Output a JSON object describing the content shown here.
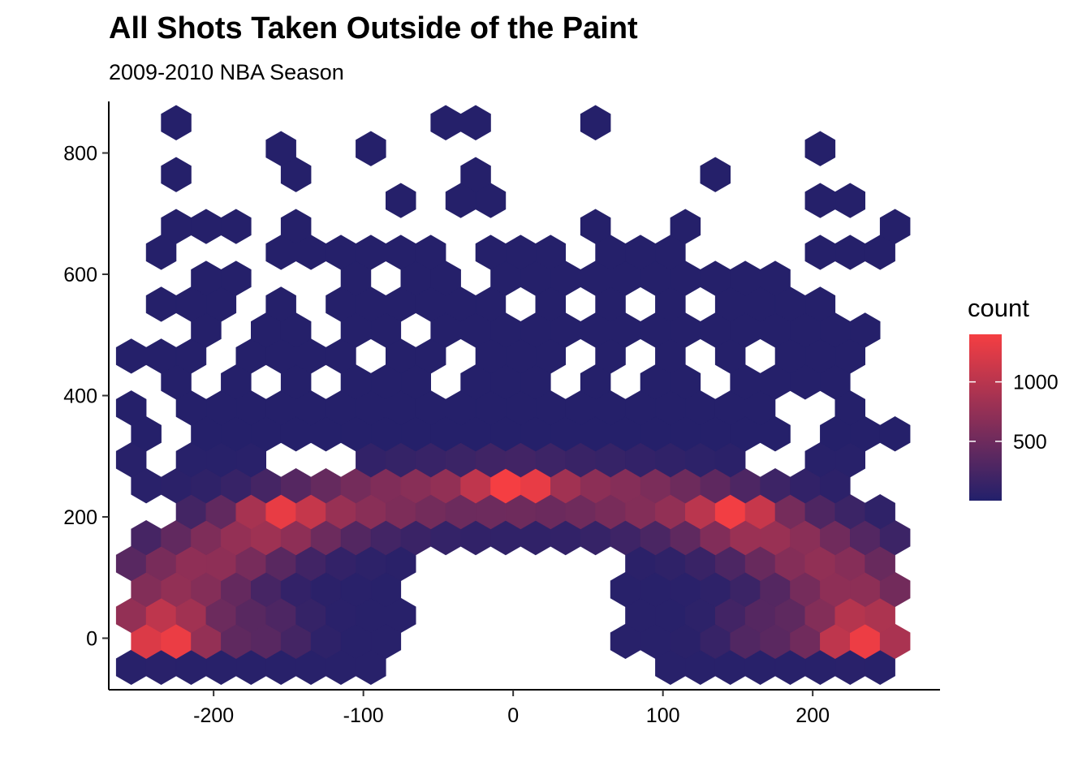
{
  "chart_data": {
    "type": "heatmap",
    "subtype": "hexbin",
    "title": "All Shots Taken Outside of the Paint",
    "subtitle": "2009-2010 NBA Season",
    "xlabel": "",
    "ylabel": "",
    "xlim": [
      -270,
      285
    ],
    "ylim": [
      -85,
      885
    ],
    "x_ticks": [
      -200,
      -100,
      0,
      100,
      200
    ],
    "x_tick_labels": [
      "-200",
      "-100",
      "0",
      "100",
      "200"
    ],
    "y_ticks": [
      0,
      200,
      400,
      600,
      800
    ],
    "y_tick_labels": [
      "0",
      "200",
      "400",
      "600",
      "800"
    ],
    "grid": false,
    "legend": {
      "title": "count",
      "position": "right",
      "ticks": [
        500,
        1000
      ],
      "tick_labels": [
        "500",
        "1000"
      ],
      "range": [
        1,
        1400
      ],
      "colors": {
        "low": "#22206b",
        "high": "#f53e42"
      }
    },
    "binwidth": 10,
    "paint_region": {
      "x": [
        -70,
        70
      ],
      "y": [
        -50,
        140
      ]
    },
    "density_model": {
      "peaks": [
        {
          "x": -232,
          "y": 10,
          "count": 1380
        },
        {
          "x": 232,
          "y": 10,
          "count": 1300
        },
        {
          "x": 0,
          "y": 250,
          "count": 1250
        },
        {
          "x": -155,
          "y": 200,
          "count": 1150
        },
        {
          "x": 150,
          "y": 200,
          "count": 1200
        },
        {
          "x": -160,
          "y": 15,
          "count": 850
        },
        {
          "x": 160,
          "y": 15,
          "count": 850
        }
      ],
      "arc_radius": 235,
      "arc_count": 700,
      "background_count": 40
    }
  }
}
